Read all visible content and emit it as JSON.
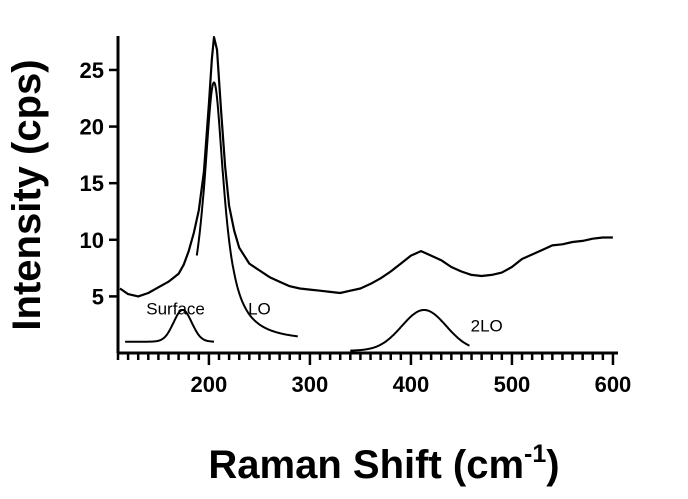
{
  "chart_data": {
    "type": "line",
    "title": "",
    "xlabel": "Raman Shift (cm",
    "xlabel_superscript": "-1",
    "xlabel_close": ")",
    "ylabel": "Intensity (cps)",
    "xlim": [
      110,
      605
    ],
    "ylim": [
      0,
      28
    ],
    "xticks": [
      200,
      300,
      400,
      500,
      600
    ],
    "yticks": [
      5,
      10,
      15,
      20,
      25
    ],
    "minor_xtick_step": 10,
    "grid": false,
    "legend": "none",
    "line_color": "#000000",
    "peak_labels": [
      {
        "text": "Surface",
        "x": 167,
        "y": 3.4
      },
      {
        "text": "LO",
        "x": 250,
        "y": 3.4
      },
      {
        "text": "2LO",
        "x": 475,
        "y": 1.9
      }
    ],
    "series": [
      {
        "role": "measured",
        "x": [
          112,
          120,
          130,
          140,
          150,
          160,
          170,
          175,
          180,
          185,
          190,
          195,
          200,
          203,
          205,
          208,
          212,
          216,
          220,
          225,
          230,
          240,
          250,
          260,
          270,
          280,
          290,
          300,
          310,
          320,
          330,
          340,
          350,
          360,
          370,
          380,
          390,
          400,
          405,
          410,
          415,
          420,
          430,
          440,
          450,
          460,
          470,
          480,
          490,
          500,
          510,
          520,
          530,
          540,
          550,
          560,
          570,
          580,
          590,
          600
        ],
        "y": [
          5.7,
          5.2,
          5.0,
          5.3,
          5.8,
          6.3,
          7.0,
          7.8,
          9.0,
          10.6,
          12.6,
          16.0,
          22.0,
          26.0,
          27.9,
          26.8,
          21.5,
          16.5,
          13.0,
          10.8,
          9.3,
          7.9,
          7.3,
          6.7,
          6.3,
          5.9,
          5.7,
          5.6,
          5.5,
          5.4,
          5.3,
          5.5,
          5.7,
          6.1,
          6.6,
          7.2,
          7.9,
          8.6,
          8.8,
          9.0,
          8.8,
          8.6,
          8.2,
          7.6,
          7.2,
          6.9,
          6.8,
          6.9,
          7.1,
          7.6,
          8.3,
          8.7,
          9.1,
          9.5,
          9.6,
          9.8,
          9.9,
          10.1,
          10.2,
          10.2
        ]
      },
      {
        "role": "LO fit",
        "peak": "lorentzian",
        "center": 205,
        "height": 22.9,
        "hwhm": 12,
        "baseline": 1.0,
        "x_range": [
          188,
          288
        ]
      },
      {
        "role": "Surface fit",
        "peak": "gaussian",
        "center": 174,
        "height": 2.8,
        "sigma": 9,
        "baseline": 1.0,
        "x_range": [
          117,
          205
        ]
      },
      {
        "role": "2LO fit",
        "peak": "gaussian",
        "center": 413,
        "height": 3.6,
        "sigma": 22,
        "baseline": 0.2,
        "x_range": [
          340,
          458
        ]
      }
    ]
  }
}
